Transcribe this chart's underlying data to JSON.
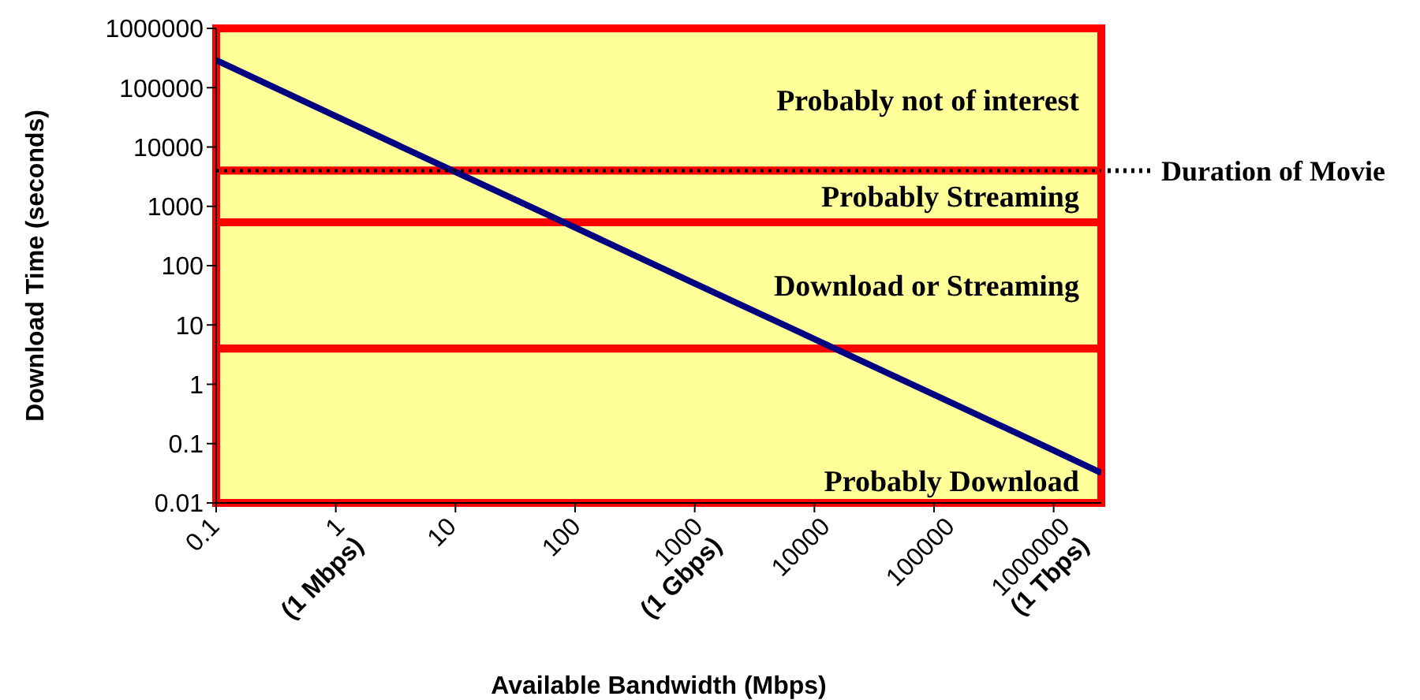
{
  "chart_data": {
    "type": "line",
    "xlabel": "Available Bandwidth (Mbps)",
    "ylabel": "Download Time (seconds)",
    "x": [
      0.1,
      1,
      10,
      100,
      1000,
      10000,
      100000,
      1000000,
      2500000
    ],
    "series": [
      {
        "color": "#000080",
        "values": [
          290000,
          33000,
          3800,
          440,
          50,
          5.8,
          0.67,
          0.077,
          0.032
        ]
      }
    ],
    "log": "xy",
    "xlim": [
      0.1,
      2500000
    ],
    "xticks": [
      0.1,
      {
        "value": 1,
        "label": "1\n(1 Mbps)"
      },
      10,
      100,
      {
        "value": 1000,
        "label": "1000\n(1 Gbps)"
      },
      10000,
      100000,
      {
        "value": 1000000,
        "label": "1000000\n(1 Tbps)"
      }
    ],
    "ylim": [
      0.01,
      1000000
    ],
    "yticks": [
      0.01,
      0.1,
      1,
      10,
      100,
      1000,
      10000,
      100000,
      1000000
    ],
    "bands": [
      {
        "axis": "y",
        "from": 4000,
        "to": 1000000,
        "label": "Probably not of interest",
        "color": "#ffff99"
      },
      {
        "axis": "y",
        "from": 540,
        "to": 4000,
        "label": "Probably Streaming",
        "color": "#ffff99"
      },
      {
        "axis": "y",
        "from": 4,
        "to": 540,
        "label": "Download or Streaming",
        "color": "#ffff99"
      },
      {
        "axis": "y",
        "from": 0.01,
        "to": 4,
        "label": "Probably Download",
        "color": "#ffff99"
      }
    ],
    "ref_lines": [
      {
        "axis": "y",
        "value": 4000,
        "label": "Duration of Movie",
        "line_style": "dotted",
        "color": "#000000"
      }
    ],
    "legend": false,
    "marker": "none",
    "line_style": "solid"
  }
}
